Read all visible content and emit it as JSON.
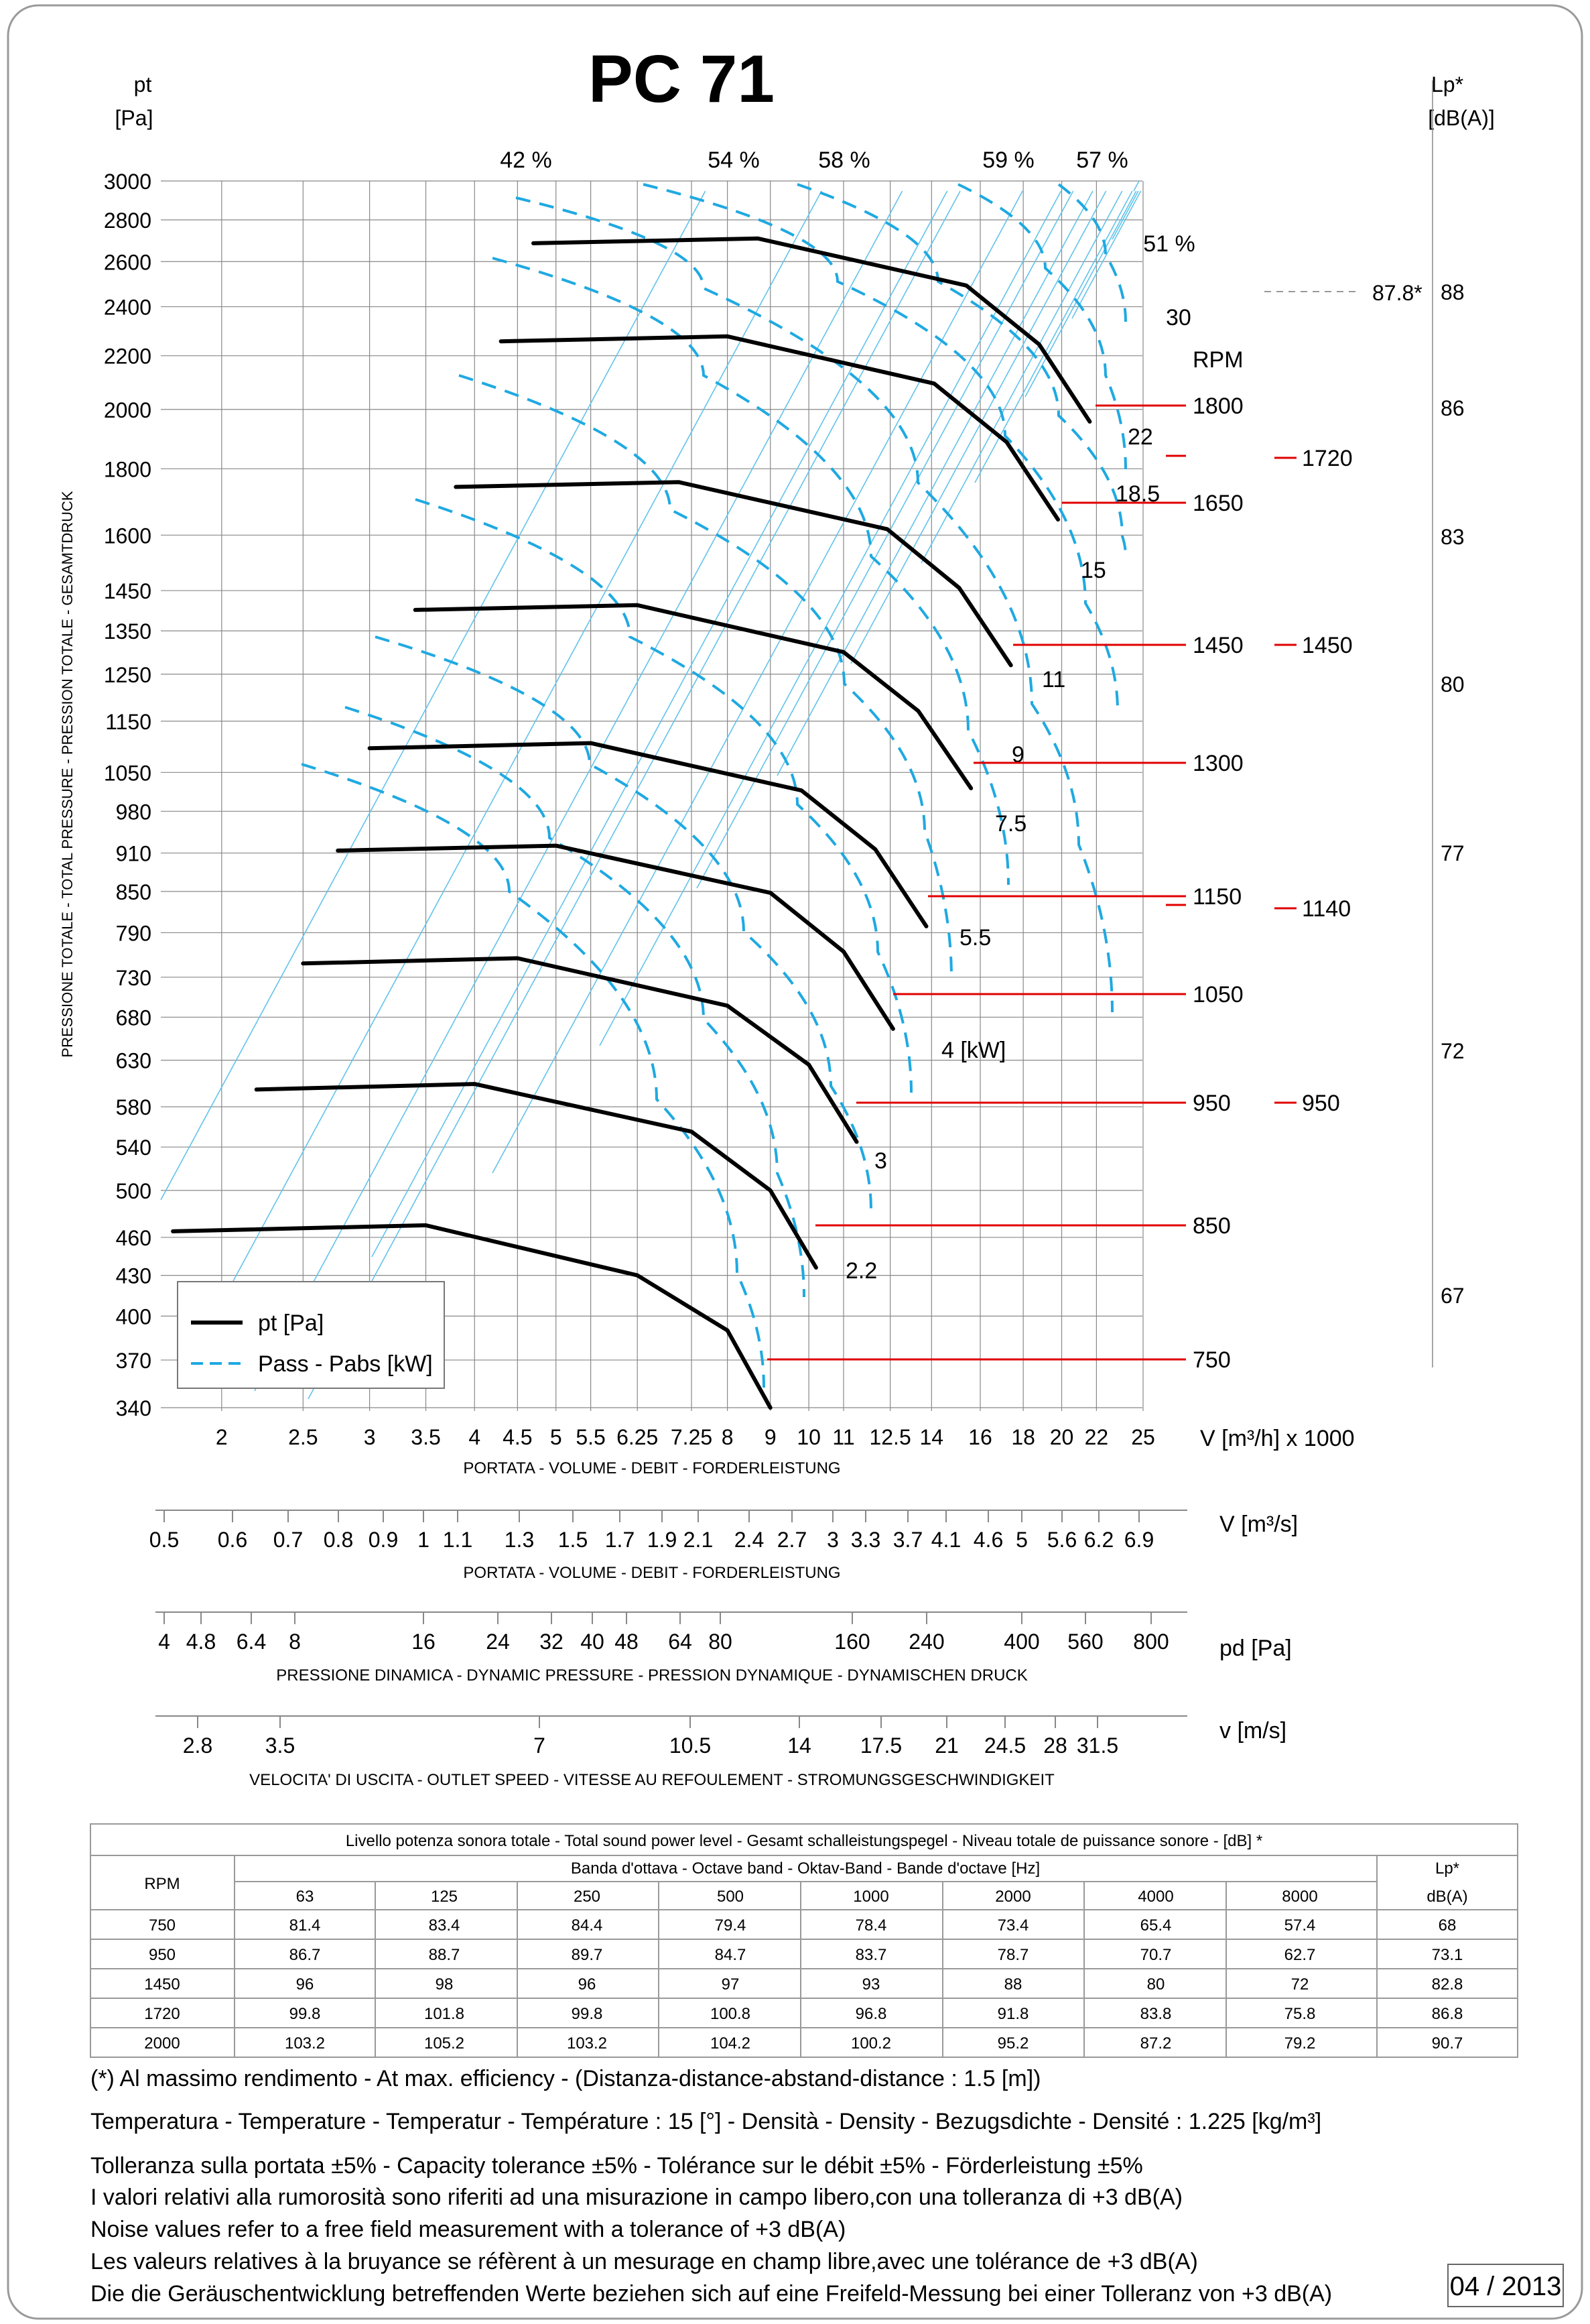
{
  "title": "PC 71",
  "left_axis": {
    "unit_line1": "pt",
    "unit_line2": "[Pa]",
    "vertical_label": "PRESSIONE TOTALE - TOTAL PRESSURE - PRESSION TOTALE - GESAMTDRUCK",
    "ticks": [
      "3000",
      "2800",
      "2600",
      "2400",
      "2200",
      "2000",
      "1800",
      "1600",
      "1450",
      "1350",
      "1250",
      "1150",
      "1050",
      "980",
      "910",
      "850",
      "790",
      "730",
      "680",
      "630",
      "580",
      "540",
      "500",
      "460",
      "430",
      "400",
      "370",
      "340"
    ]
  },
  "right_axis": {
    "unit_line1": "Lp*",
    "unit_line2": "[dB(A)]",
    "ticks": [
      "88",
      "86",
      "83",
      "80",
      "77",
      "72",
      "67"
    ],
    "marker_label": "87.8*"
  },
  "x_axis_main": {
    "ticks": [
      "2",
      "2.5",
      "3",
      "3.5",
      "4",
      "4.5",
      "5",
      "5.5",
      "6.25",
      "7.25",
      "8",
      "9",
      "10",
      "11",
      "12.5",
      "14",
      "16",
      "18",
      "20",
      "22",
      "25"
    ],
    "unit": "V [m³/h]  x 1000",
    "caption": "PORTATA - VOLUME - DEBIT - FORDERLEISTUNG"
  },
  "scale_m3s": {
    "ticks": [
      "0.5",
      "0.6",
      "0.7",
      "0.8",
      "0.9",
      "1",
      "1.1",
      "1.3",
      "1.5",
      "1.7",
      "1.9",
      "2.1",
      "2.4",
      "2.7",
      "3",
      "3.3",
      "3.7",
      "4.1",
      "4.6",
      "5",
      "5.6",
      "6.2",
      "6.9"
    ],
    "unit": "V  [m³/s]",
    "caption": "PORTATA - VOLUME - DEBIT - FORDERLEISTUNG"
  },
  "scale_pd": {
    "ticks": [
      "4",
      "4.8",
      "6.4",
      "8",
      "16",
      "24",
      "32",
      "40",
      "48",
      "64",
      "80",
      "160",
      "240",
      "400",
      "560",
      "800"
    ],
    "unit": "pd  [Pa]",
    "caption": "PRESSIONE DINAMICA - DYNAMIC PRESSURE - PRESSION DYNAMIQUE - DYNAMISCHEN DRUCK"
  },
  "scale_speed": {
    "ticks": [
      "2.8",
      "3.5",
      "7",
      "10.5",
      "14",
      "17.5",
      "21",
      "24.5",
      "28",
      "31.5"
    ],
    "unit": "v  [m/s]",
    "caption": "VELOCITA' DI USCITA - OUTLET SPEED - VITESSE AU REFOULEMENT - STROMUNGSGESCHWINDIGKEIT"
  },
  "efficiency_labels": [
    "42 %",
    "54 %",
    "58 %",
    "59 %",
    "57 %",
    "51 %"
  ],
  "power_labels": [
    "30",
    "22",
    "18.5",
    "15",
    "11",
    "9",
    "7.5",
    "5.5",
    "4   [kW]",
    "3",
    "2.2"
  ],
  "rpm_header": "RPM",
  "legend": {
    "pt": "pt [Pa]",
    "power": "Pass - Pabs [kW]"
  },
  "chart_data": {
    "type": "line",
    "title": "PC 71",
    "xlabel": "V [m³/h] x 1000",
    "ylabel": "pt [Pa]",
    "xscale": "log",
    "yscale": "log",
    "xlim": [
      1.7,
      26
    ],
    "ylim": [
      330,
      3050
    ],
    "series": [
      {
        "name": "750 RPM",
        "rpm": "750",
        "x": [
          1.75,
          3.5,
          6.25,
          8.0,
          9.0
        ],
        "y": [
          465,
          470,
          430,
          390,
          340
        ]
      },
      {
        "name": "850 RPM",
        "rpm": "850",
        "x": [
          2.2,
          4.0,
          7.25,
          9.0,
          10.2
        ],
        "y": [
          598,
          604,
          555,
          500,
          436
        ]
      },
      {
        "name": "950 RPM",
        "rpm": "950",
        "x": [
          2.5,
          4.5,
          8.0,
          10.0,
          11.4
        ],
        "y": [
          748,
          755,
          694,
          625,
          545
        ]
      },
      {
        "name": "1050 RPM",
        "rpm": "1050",
        "x": [
          2.75,
          5.0,
          9.0,
          11.0,
          12.6
        ],
        "y": [
          914,
          922,
          848,
          764,
          666
        ]
      },
      {
        "name": "1150 RPM",
        "rpm": "1150",
        "x": [
          3.0,
          5.5,
          9.8,
          12.0,
          13.8
        ],
        "y": [
          1096,
          1106,
          1017,
          916,
          799
        ]
      },
      {
        "name": "1300 RPM",
        "rpm": "1300",
        "x": [
          3.4,
          6.25,
          11.0,
          13.5,
          15.6
        ],
        "y": [
          1401,
          1413,
          1300,
          1171,
          1021
        ]
      },
      {
        "name": "1450 RPM",
        "rpm": "1450",
        "x": [
          3.8,
          7.0,
          12.4,
          15.1,
          17.4
        ],
        "y": [
          1743,
          1758,
          1617,
          1457,
          1270
        ]
      },
      {
        "name": "1650 RPM",
        "rpm": "1650",
        "x": [
          4.3,
          8.0,
          14.1,
          17.2,
          19.8
        ],
        "y": [
          2257,
          2277,
          2094,
          1887,
          1645
        ]
      },
      {
        "name": "1800 RPM",
        "rpm": "1800",
        "x": [
          4.7,
          8.7,
          15.4,
          18.8,
          21.6
        ],
        "y": [
          2686,
          2709,
          2492,
          2245,
          1957
        ]
      }
    ],
    "power_curves_kW": [
      "2.2",
      "3",
      "4",
      "5.5",
      "7.5",
      "9",
      "11",
      "15",
      "18.5",
      "22",
      "30"
    ],
    "efficiency_lines_percent": [
      "42",
      "54",
      "58",
      "59",
      "57",
      "51"
    ],
    "operating_rpm_list": [
      "1800",
      "1650",
      "1450",
      "1300",
      "1150",
      "1050",
      "950",
      "850",
      "750"
    ],
    "noise_rpm_list": [
      "1720",
      "1450",
      "1140",
      "950"
    ]
  },
  "table": {
    "title": "Livello potenza sonora totale - Total sound power level - Gesamt schalleistungspegel - Niveau totale de puissance sonore - [dB]   *",
    "band_header": "Banda d'ottava - Octave band - Oktav-Band - Bande d'octave [Hz]",
    "rpm_header": "RPM",
    "lp_header1": "Lp*",
    "lp_header2": "dB(A)",
    "bands": [
      "63",
      "125",
      "250",
      "500",
      "1000",
      "2000",
      "4000",
      "8000"
    ],
    "rows": [
      [
        "750",
        "81.4",
        "83.4",
        "84.4",
        "79.4",
        "78.4",
        "73.4",
        "65.4",
        "57.4",
        "68"
      ],
      [
        "950",
        "86.7",
        "88.7",
        "89.7",
        "84.7",
        "83.7",
        "78.7",
        "70.7",
        "62.7",
        "73.1"
      ],
      [
        "1450",
        "96",
        "98",
        "96",
        "97",
        "93",
        "88",
        "80",
        "72",
        "82.8"
      ],
      [
        "1720",
        "99.8",
        "101.8",
        "99.8",
        "100.8",
        "96.8",
        "91.8",
        "83.8",
        "75.8",
        "86.8"
      ],
      [
        "2000",
        "103.2",
        "105.2",
        "103.2",
        "104.2",
        "100.2",
        "95.2",
        "87.2",
        "79.2",
        "90.7"
      ]
    ]
  },
  "notes": {
    "n1": "(*) Al massimo rendimento - At max. efficiency - (Distanza-distance-abstand-distance : 1.5 [m])",
    "n2": "Temperatura - Temperature - Temperatur - Température : 15 [°]  -  Densità - Density - Bezugsdichte - Densité : 1.225 [kg/m³]",
    "n3": "Tolleranza sulla portata  ±5% - Capacity tolerance ±5% - Tolérance sur le débit ±5% - Förderleistung ±5%",
    "n4": "I valori relativi alla rumorosità sono riferiti ad una misurazione in campo libero,con una tolleranza di +3 dB(A)",
    "n5": "Noise values refer to a free field measurement with a tolerance of +3 dB(A)",
    "n6": "Les valeurs relatives à la bruyance se réfèrent à un mesurage en champ libre,avec une tolérance de +3 dB(A)",
    "n7": "Die die Geräuschentwicklung betreffenden Werte beziehen sich auf eine Freifeld-Messung bei einer Tolleranz von +3 dB(A)"
  },
  "date": "04 / 2013",
  "colors": {
    "curve": "#000000",
    "power": "#1fa9e1",
    "red": "#e00000",
    "grid": "#888888",
    "eff": "#62c3ea"
  }
}
